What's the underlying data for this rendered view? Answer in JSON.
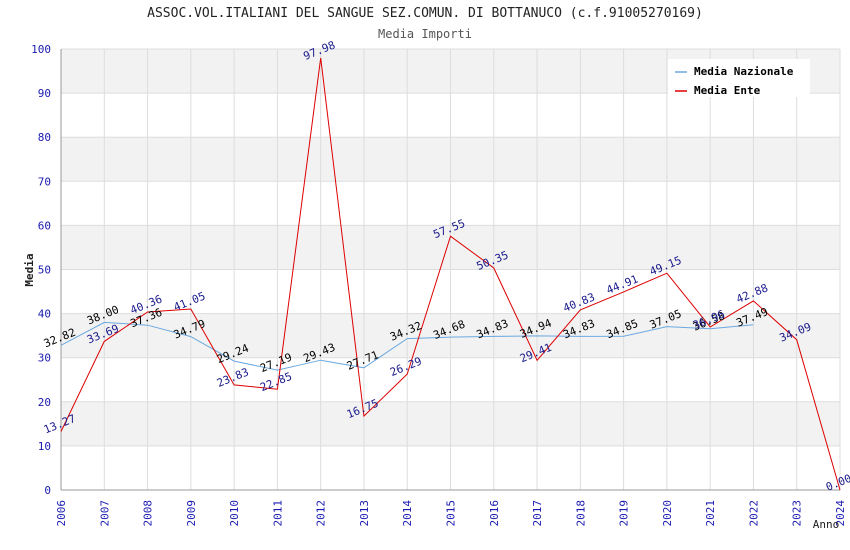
{
  "chart_data": {
    "type": "line",
    "title": "ASSOC.VOL.ITALIANI DEL SANGUE SEZ.COMUN. DI BOTTANUCO (c.f.91005270169)",
    "subtitle": "Media Importi",
    "xlabel": "Anno",
    "ylabel": "Media",
    "ylim": [
      0,
      100
    ],
    "yticks": [
      0,
      10,
      20,
      30,
      40,
      50,
      60,
      70,
      80,
      90,
      100
    ],
    "x": [
      "2006",
      "2007",
      "2008",
      "2009",
      "2010",
      "2011",
      "2012",
      "2013",
      "2014",
      "2015",
      "2016",
      "2017",
      "2018",
      "2019",
      "2020",
      "2021",
      "2022",
      "2023",
      "2024"
    ],
    "grid": true,
    "legend_position": "top-right",
    "series": [
      {
        "name": "Media Nazionale",
        "color": "#6aa8e0",
        "label_color": "#000000",
        "values": [
          32.82,
          38.0,
          37.36,
          34.79,
          29.24,
          27.19,
          29.43,
          27.71,
          34.32,
          34.68,
          34.83,
          34.94,
          34.83,
          34.85,
          37.05,
          36.58,
          37.49,
          null,
          null
        ],
        "labels": [
          "32.82",
          "38.00",
          "37.36",
          "34.79",
          "29.24",
          "27.19",
          "29.43",
          "27.71",
          "34.32",
          "34.68",
          "34.83",
          "34.94",
          "34.83",
          "34.85",
          "37.05",
          "36.58",
          "37.49",
          "",
          ""
        ]
      },
      {
        "name": "Media Ente",
        "color": "#dd0000",
        "label_color": "#1a1a8c",
        "values": [
          13.27,
          33.69,
          40.36,
          41.05,
          23.83,
          22.85,
          97.98,
          16.75,
          26.29,
          57.55,
          50.35,
          29.41,
          40.83,
          44.91,
          49.15,
          36.96,
          42.88,
          34.09,
          0.0
        ],
        "labels": [
          "13.27",
          "33.69",
          "40.36",
          "41.05",
          "23.83",
          "22.85",
          "97.98",
          "16.75",
          "26.29",
          "57.55",
          "50.35",
          "29.41",
          "40.83",
          "44.91",
          "49.15",
          "36.96",
          "42.88",
          "34.09",
          "0.00"
        ]
      }
    ],
    "colors": {
      "band": "#f2f2f2",
      "gridline": "#dddddd",
      "axis": "#999999",
      "tick_label": "#1a1ab0"
    }
  }
}
